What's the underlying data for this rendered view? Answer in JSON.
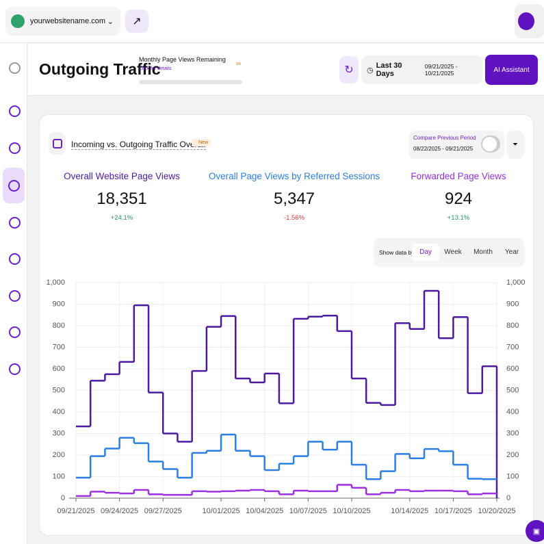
{
  "topbar": {
    "site": "yourwebsitename.com"
  },
  "header": {
    "title": "Outgoing Traffic",
    "quota_label": "Monthly Page Views Remaining",
    "quota_link": "Click for details",
    "quota_value": "∞",
    "range_label": "Last 30 Days",
    "range_dates": "09/21/2025 - 10/21/2025",
    "assistant": "AI Assistant"
  },
  "card": {
    "title": "Incoming vs. Outgoing Traffic Overall",
    "badge": "New",
    "compare_label": "Compare Previous Period",
    "compare_dates": "08/22/2025 - 09/21/2025",
    "metrics": [
      {
        "title": "Overall Website Page Views",
        "value": "18,351",
        "change": "+24.1%"
      },
      {
        "title": "Overall Page Views by Referred Sessions",
        "value": "5,347",
        "change": "-1.56%"
      },
      {
        "title": "Forwarded Page Views",
        "value": "924",
        "change": "+13.1%"
      }
    ],
    "show_by_label": "Show data by:",
    "show_by_options": [
      "Day",
      "Week",
      "Month",
      "Year"
    ]
  },
  "chart_data": {
    "type": "step-line",
    "categories": [
      "09/21/2025",
      null,
      null,
      "09/24/2025",
      null,
      null,
      "09/27/2025",
      null,
      null,
      null,
      "10/01/2025",
      null,
      null,
      "10/04/2025",
      null,
      null,
      "10/07/2025",
      null,
      null,
      "10/10/2025",
      null,
      null,
      null,
      "10/14/2025",
      null,
      null,
      "10/17/2025",
      null,
      null,
      "10/20/2025"
    ],
    "series": [
      {
        "color": "#4b1aa0",
        "values": [
          333,
          545,
          575,
          632,
          895,
          490,
          300,
          262,
          590,
          795,
          845,
          555,
          537,
          578,
          440,
          832,
          842,
          847,
          775,
          555,
          442,
          432,
          812,
          785,
          962,
          742,
          840,
          487,
          612,
          0
        ]
      },
      {
        "color": "#2b7fe3",
        "values": [
          95,
          195,
          230,
          280,
          255,
          170,
          135,
          95,
          210,
          220,
          295,
          220,
          195,
          130,
          160,
          195,
          262,
          225,
          262,
          155,
          88,
          125,
          205,
          185,
          228,
          218,
          155,
          90,
          88,
          85
        ]
      },
      {
        "color": "#9b2fe0",
        "values": [
          10,
          30,
          25,
          22,
          38,
          18,
          15,
          15,
          32,
          30,
          32,
          35,
          38,
          32,
          18,
          35,
          32,
          32,
          62,
          48,
          18,
          25,
          38,
          32,
          35,
          35,
          32,
          18,
          22,
          15
        ]
      }
    ],
    "ylim": [
      0,
      1000
    ],
    "yticks": [
      0,
      100,
      200,
      300,
      400,
      500,
      600,
      700,
      800,
      900,
      {
        "value": 1000,
        "label": "1,000"
      }
    ],
    "y2lim": [
      0,
      1000
    ],
    "y2ticks": [
      0,
      100,
      200,
      300,
      400,
      500,
      600,
      700,
      800,
      900,
      {
        "value": 1000,
        "label": "1,000"
      }
    ],
    "grid": true
  }
}
